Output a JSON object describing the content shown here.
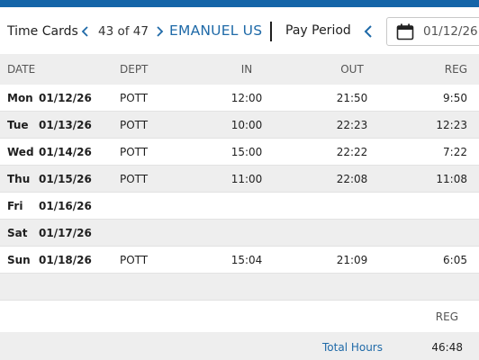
{
  "header": {
    "title": "Time Cards",
    "record_position": "43 of 47",
    "employee_name": "EMANUEL US",
    "pay_period_label": "Pay Period",
    "date_value": "01/12/26"
  },
  "columns": {
    "date": "DATE",
    "dept": "DEPT",
    "in": "IN",
    "out": "OUT",
    "reg": "REG"
  },
  "rows": [
    {
      "day": "Mon",
      "date": "01/12/26",
      "dept": "POTT",
      "in": "12:00",
      "out": "21:50",
      "reg": "9:50"
    },
    {
      "day": "Tue",
      "date": "01/13/26",
      "dept": "POTT",
      "in": "10:00",
      "out": "22:23",
      "reg": "12:23"
    },
    {
      "day": "Wed",
      "date": "01/14/26",
      "dept": "POTT",
      "in": "15:00",
      "out": "22:22",
      "reg": "7:22"
    },
    {
      "day": "Thu",
      "date": "01/15/26",
      "dept": "POTT",
      "in": "11:00",
      "out": "22:08",
      "reg": "11:08"
    },
    {
      "day": "Fri",
      "date": "01/16/26",
      "dept": "",
      "in": "",
      "out": "",
      "reg": ""
    },
    {
      "day": "Sat",
      "date": "01/17/26",
      "dept": "",
      "in": "",
      "out": "",
      "reg": ""
    },
    {
      "day": "Sun",
      "date": "01/18/26",
      "dept": "POTT",
      "in": "15:04",
      "out": "21:09",
      "reg": "6:05"
    }
  ],
  "summary": {
    "reg_header": "REG",
    "total_label": "Total Hours",
    "total_value": "46:48"
  },
  "colors": {
    "accent": "#1565a8",
    "link": "#1f6aa8",
    "band": "#eeeeee"
  },
  "icons": [
    "chevron-left-icon",
    "chevron-right-icon",
    "calendar-icon"
  ]
}
